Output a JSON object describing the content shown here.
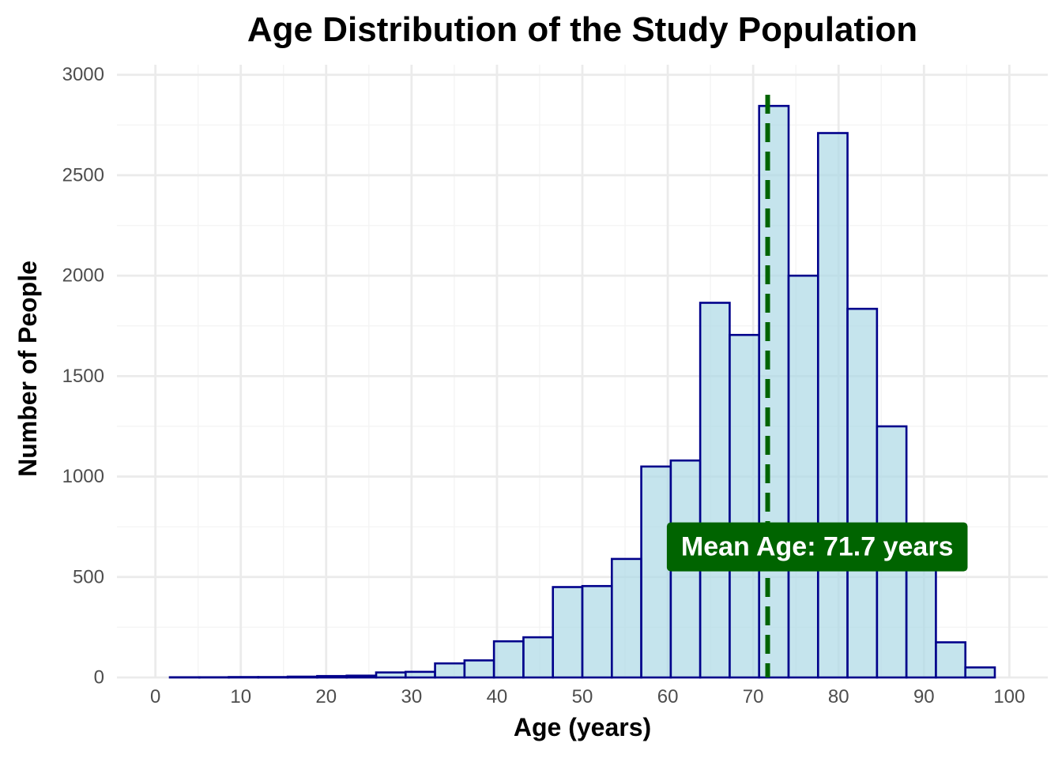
{
  "chart_data": {
    "type": "bar",
    "title": "Age Distribution of the Study Population",
    "xlabel": "Age (years)",
    "ylabel": "Number of People",
    "xlim": [
      -4.5,
      104.5
    ],
    "ylim": [
      0,
      3050
    ],
    "x_ticks": [
      0,
      10,
      20,
      30,
      40,
      50,
      60,
      70,
      80,
      90,
      100
    ],
    "y_ticks": [
      0,
      500,
      1000,
      1500,
      2000,
      2500,
      3000
    ],
    "grid": true,
    "bin_width": 3.45,
    "bins_start": [
      1.7,
      5.15,
      8.6,
      12.05,
      15.5,
      18.95,
      22.4,
      25.85,
      29.3,
      32.75,
      36.2,
      39.65,
      43.1,
      46.55,
      50.0,
      53.45,
      56.9,
      60.35,
      63.8,
      67.25,
      70.7,
      74.15,
      77.6,
      81.05,
      84.5,
      87.95,
      91.4,
      94.85
    ],
    "values": [
      1,
      1,
      2,
      2,
      4,
      7,
      9,
      25,
      28,
      70,
      85,
      180,
      200,
      450,
      455,
      590,
      1050,
      1080,
      1865,
      1705,
      2845,
      2000,
      2710,
      1835,
      1250,
      660,
      175,
      50
    ],
    "colors": {
      "fill": "#add8e6",
      "outline": "#00008b",
      "mean": "#006400",
      "annotation_text": "#ffffff"
    },
    "mean_line": {
      "x": 71.7,
      "style": "dashed"
    },
    "annotation": {
      "text": "Mean Age: 71.7 years",
      "x": 77.5,
      "y": 650
    }
  }
}
